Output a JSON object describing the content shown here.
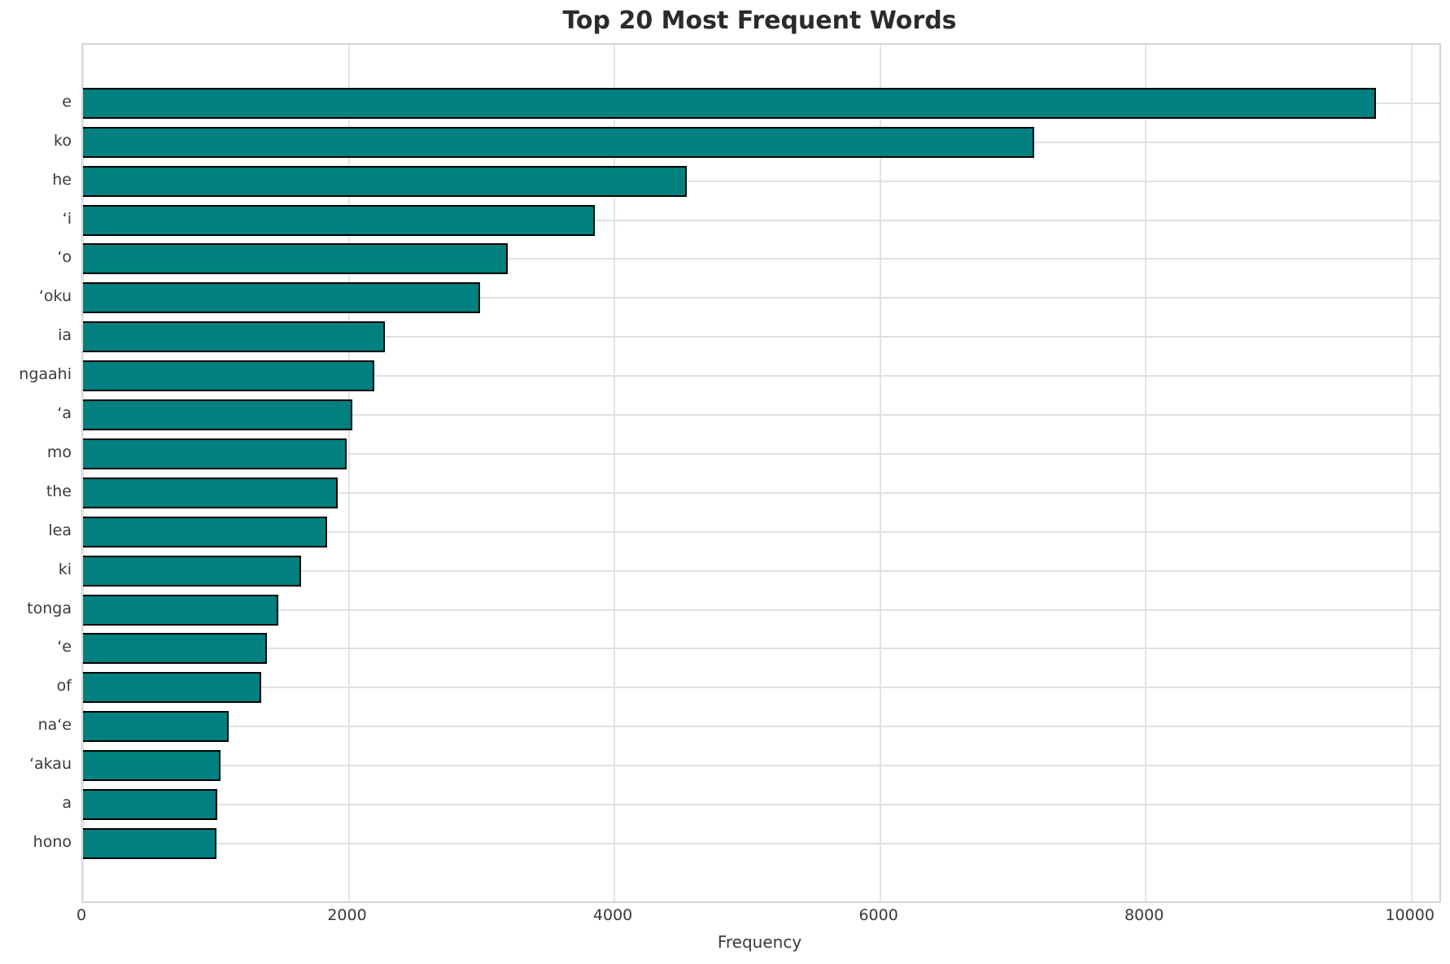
{
  "chart_data": {
    "type": "bar",
    "orientation": "horizontal",
    "title": "Top 20 Most Frequent Words",
    "xlabel": "Frequency",
    "ylabel": "",
    "categories": [
      "e",
      "ko",
      "he",
      "‘i",
      "‘o",
      "‘oku",
      "ia",
      "ngaahi",
      "‘a",
      "mo",
      "the",
      "lea",
      "ki",
      "tonga",
      "‘e",
      "of",
      "na‘e",
      "‘akau",
      "a",
      "hono"
    ],
    "values": [
      9730,
      7160,
      4545,
      3850,
      3195,
      2990,
      2270,
      2190,
      2025,
      1985,
      1915,
      1835,
      1640,
      1470,
      1385,
      1340,
      1095,
      1035,
      1010,
      1005
    ],
    "xticks": [
      0,
      2000,
      4000,
      6000,
      8000,
      10000
    ],
    "xlim": [
      0,
      10210
    ],
    "grid": true,
    "legend_position": "none",
    "bar_color": "#008080",
    "bar_edge_color": "#000000",
    "gridline_color": "#e2e2e2",
    "spine_color": "#d4d4d4",
    "background_color": "#ffffff",
    "text_color": "#3a3a3a"
  }
}
